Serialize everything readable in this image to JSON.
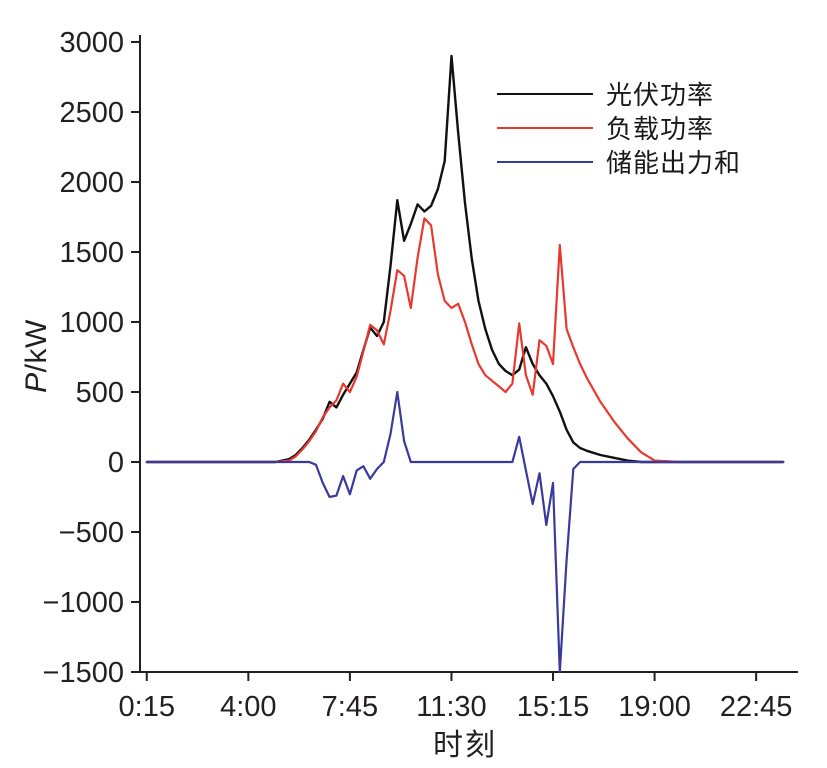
{
  "chart_data": {
    "type": "line",
    "title": "",
    "xlabel": "时刻",
    "ylabel": "P/kW",
    "ylabel_var": "P",
    "ylabel_unit": "/kW",
    "xlim": [
      0,
      24
    ],
    "ylim": [
      -1500,
      3000
    ],
    "grid": false,
    "legend_position": "top-right",
    "axis_color": "#231f20",
    "y_ticks": [
      3000,
      2500,
      2000,
      1500,
      1000,
      500,
      0,
      -500,
      -1000,
      -1500
    ],
    "x_ticks": [
      {
        "value": 0.25,
        "label": "0:15"
      },
      {
        "value": 4.0,
        "label": "4:00"
      },
      {
        "value": 7.75,
        "label": "7:45"
      },
      {
        "value": 11.5,
        "label": "11:30"
      },
      {
        "value": 15.25,
        "label": "15:15"
      },
      {
        "value": 19.0,
        "label": "19:00"
      },
      {
        "value": 22.75,
        "label": "22:45"
      }
    ],
    "x": [
      0.25,
      4.0,
      5.0,
      5.5,
      5.75,
      6.0,
      6.25,
      6.5,
      6.75,
      7.0,
      7.25,
      7.5,
      7.75,
      8.0,
      8.25,
      8.5,
      8.75,
      9.0,
      9.25,
      9.5,
      9.75,
      10.0,
      10.25,
      10.5,
      10.75,
      11.0,
      11.25,
      11.5,
      11.75,
      12.0,
      12.25,
      12.5,
      12.75,
      13.0,
      13.25,
      13.5,
      13.75,
      14.0,
      14.25,
      14.5,
      14.75,
      15.0,
      15.25,
      15.5,
      15.75,
      16.0,
      16.25,
      16.5,
      17.0,
      17.5,
      18.0,
      18.5,
      19.0,
      20.0,
      23.75
    ],
    "series": [
      {
        "name": "光伏功率",
        "color": "#111111",
        "line_width": 2.4,
        "values": [
          0,
          0,
          0,
          20,
          50,
          100,
          160,
          230,
          310,
          430,
          390,
          480,
          560,
          640,
          800,
          960,
          900,
          1000,
          1400,
          1870,
          1580,
          1700,
          1840,
          1790,
          1830,
          1950,
          2150,
          2900,
          2350,
          1850,
          1450,
          1150,
          950,
          800,
          700,
          650,
          620,
          660,
          820,
          700,
          620,
          560,
          470,
          360,
          230,
          140,
          100,
          80,
          50,
          30,
          10,
          0,
          0,
          0,
          0
        ]
      },
      {
        "name": "负载功率",
        "color": "#e8392f",
        "line_width": 2.2,
        "values": [
          0,
          0,
          0,
          10,
          40,
          90,
          150,
          220,
          320,
          390,
          440,
          560,
          500,
          610,
          790,
          980,
          940,
          840,
          1080,
          1370,
          1330,
          1100,
          1460,
          1740,
          1690,
          1340,
          1150,
          1100,
          1130,
          1000,
          840,
          700,
          620,
          580,
          540,
          500,
          560,
          990,
          620,
          480,
          870,
          830,
          700,
          1550,
          950,
          820,
          700,
          600,
          430,
          290,
          170,
          70,
          10,
          0,
          0
        ]
      },
      {
        "name": "储能出力和",
        "color": "#3a3a9c",
        "line_width": 2.2,
        "values": [
          0,
          0,
          0,
          0,
          0,
          0,
          0,
          -20,
          -150,
          -250,
          -240,
          -100,
          -230,
          -60,
          -30,
          -120,
          -50,
          0,
          200,
          500,
          150,
          0,
          0,
          0,
          0,
          0,
          0,
          0,
          0,
          0,
          0,
          0,
          0,
          0,
          0,
          0,
          0,
          180,
          -60,
          -300,
          -80,
          -450,
          -150,
          -1500,
          -700,
          -50,
          0,
          0,
          0,
          0,
          0,
          0,
          0,
          0,
          0
        ]
      }
    ]
  }
}
